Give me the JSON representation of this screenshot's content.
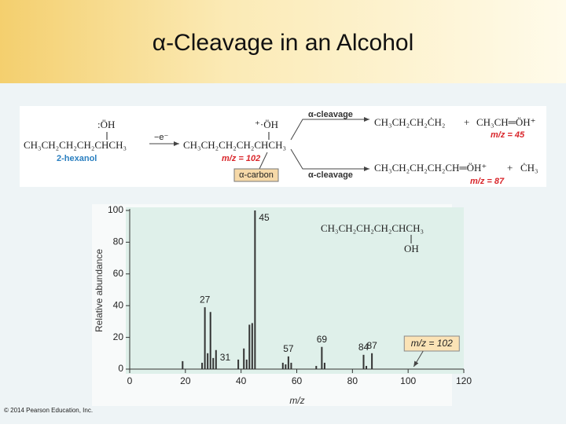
{
  "header": {
    "title": "α-Cleavage in an Alcohol"
  },
  "scheme": {
    "reactant_oh": ":ÖH",
    "reactant": "CH₃CH₂CH₂CH₂CHCH₃",
    "reactant_name": "2-hexanol",
    "ionization": "−e⁻",
    "ion_oh": "⁺·ÖH",
    "ion": "CH₃CH₂CH₂CH₂CHCH₃",
    "ion_mz": "m/z = 102",
    "alpha_carbon": "α-carbon",
    "cleavage_top": "α-cleavage",
    "cleavage_bottom": "α-cleavage",
    "top_radical": "CH₃CH₂CH₂ĊH₂",
    "top_plus": "+",
    "top_ion": "CH₃CH═ÖH⁺",
    "top_mz": "m/z = 45",
    "bottom_ion": "CH₃CH₂CH₂CH₂CH═ÖH⁺",
    "bottom_plus": "+",
    "bottom_radical": "ĊH₃",
    "bottom_mz": "m/z = 87"
  },
  "chart_data": {
    "type": "stick",
    "xlabel": "m/z",
    "ylabel": "Relative abundance",
    "x": [
      19,
      26,
      27,
      28,
      29,
      30,
      31,
      39,
      41,
      42,
      43,
      44,
      45,
      55,
      56,
      57,
      58,
      67,
      69,
      70,
      84,
      85,
      87
    ],
    "values": [
      5,
      4,
      39,
      10,
      36,
      7,
      12,
      6,
      13,
      6,
      28,
      29,
      100,
      4,
      3,
      8,
      4,
      2,
      14,
      4,
      9,
      2,
      10
    ],
    "x_labels": [
      null,
      null,
      "27",
      null,
      null,
      null,
      "31",
      null,
      null,
      null,
      null,
      null,
      "45",
      null,
      null,
      "57",
      null,
      null,
      "69",
      null,
      "84",
      null,
      "87"
    ],
    "color": "#333333",
    "xlim": [
      0,
      120
    ],
    "xticks": [
      0,
      20,
      40,
      60,
      80,
      100,
      120
    ],
    "ylim": [
      0,
      100
    ],
    "yticks": [
      0,
      20,
      40,
      60,
      80,
      100
    ],
    "structure": {
      "formula": "CH₃CH₂CH₂CH₂CHCH₃",
      "substituent": "OH"
    },
    "annotation": {
      "text": "m/z = 102",
      "x": 102
    }
  },
  "footer": "© 2014 Pearson Education, Inc."
}
